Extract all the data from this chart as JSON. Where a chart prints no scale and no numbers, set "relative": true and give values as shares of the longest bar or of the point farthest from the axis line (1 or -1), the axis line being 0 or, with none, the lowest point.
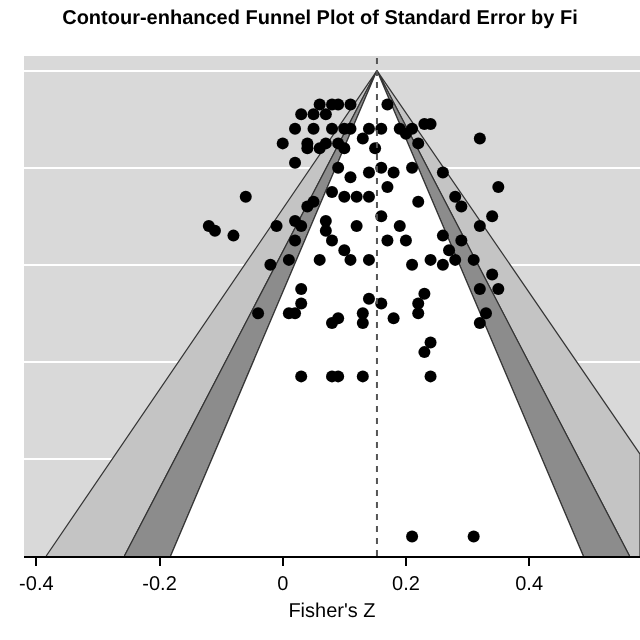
{
  "chart_data": {
    "type": "scatter",
    "title": "Contour-enhanced Funnel Plot of Standard Error by Fi",
    "xlabel": "Fisher's Z",
    "relative": true,
    "grid": "y",
    "xlim": [
      -0.42,
      0.58
    ],
    "xticks": [
      -0.4,
      -0.2,
      0,
      0.2,
      0.4
    ],
    "ref_lines": [
      {
        "axis": "x",
        "value": 0.153,
        "label": null,
        "color": "#555555",
        "line_style": "dotted"
      }
    ],
    "series": [
      {
        "type": "area",
        "color": "#c4c4c4",
        "x": [
          -0.384,
          0.153,
          -0.257
        ],
        "values": [
          0,
          1,
          0
        ]
      },
      {
        "type": "area",
        "color": "#c4c4c4",
        "x": [
          0.563,
          0.153,
          0.58,
          0.58
        ],
        "values": [
          0,
          1,
          0.21,
          0
        ]
      },
      {
        "type": "area",
        "color": "#8c8c8c",
        "x": [
          -0.257,
          0.153,
          -0.182
        ],
        "values": [
          0,
          1,
          0
        ]
      },
      {
        "type": "area",
        "color": "#8c8c8c",
        "x": [
          0.488,
          0.153,
          0.563
        ],
        "values": [
          0,
          1,
          0
        ]
      },
      {
        "type": "area",
        "color": "#ffffff",
        "x": [
          -0.182,
          0.153,
          0.488
        ],
        "values": [
          0,
          1,
          0
        ]
      },
      {
        "type": "scatter",
        "marker": "circle",
        "color": "#000000",
        "x": [
          0.17,
          0.06,
          0.08,
          0.09,
          0.11,
          0.03,
          0.05,
          0.07,
          0.32,
          0.02,
          0.05,
          0.08,
          0.1,
          0.11,
          0.14,
          0.16,
          0.19,
          0.21,
          0.23,
          0.24,
          0.0,
          0.04,
          0.07,
          0.09,
          0.13,
          0.2,
          0.22,
          0.04,
          0.06,
          0.1,
          0.15,
          0.02,
          -0.06,
          0.35,
          0.14,
          0.16,
          0.18,
          0.09,
          0.11,
          0.21,
          0.26,
          0.08,
          0.1,
          0.12,
          0.14,
          0.05,
          0.04,
          0.17,
          0.22,
          0.28,
          0.29,
          0.34,
          -0.12,
          -0.11,
          -0.08,
          -0.01,
          0.02,
          0.03,
          0.07,
          0.07,
          0.12,
          0.16,
          0.19,
          0.2,
          0.17,
          0.26,
          0.32,
          0.02,
          0.08,
          0.1,
          0.27,
          0.29,
          -0.02,
          0.01,
          0.06,
          0.11,
          0.14,
          0.21,
          0.24,
          0.26,
          0.28,
          0.31,
          0.34,
          0.35,
          0.03,
          0.03,
          -0.04,
          0.01,
          0.02,
          0.14,
          0.16,
          0.22,
          0.23,
          0.32,
          0.33,
          0.08,
          0.09,
          0.13,
          0.13,
          0.18,
          0.22,
          0.32,
          0.23,
          0.24,
          0.03,
          0.08,
          0.09,
          0.13,
          0.24,
          0.21,
          0.31
        ],
        "values": [
          0.93,
          0.93,
          0.93,
          0.93,
          0.93,
          0.91,
          0.91,
          0.91,
          0.86,
          0.88,
          0.88,
          0.88,
          0.88,
          0.88,
          0.88,
          0.88,
          0.88,
          0.88,
          0.89,
          0.89,
          0.85,
          0.85,
          0.85,
          0.85,
          0.86,
          0.87,
          0.85,
          0.84,
          0.84,
          0.84,
          0.84,
          0.81,
          0.74,
          0.76,
          0.79,
          0.8,
          0.79,
          0.8,
          0.78,
          0.8,
          0.79,
          0.75,
          0.74,
          0.74,
          0.74,
          0.73,
          0.72,
          0.76,
          0.73,
          0.74,
          0.72,
          0.7,
          0.68,
          0.67,
          0.66,
          0.68,
          0.69,
          0.68,
          0.69,
          0.67,
          0.68,
          0.7,
          0.68,
          0.65,
          0.65,
          0.66,
          0.68,
          0.65,
          0.65,
          0.63,
          0.63,
          0.65,
          0.6,
          0.61,
          0.61,
          0.61,
          0.61,
          0.6,
          0.61,
          0.6,
          0.61,
          0.61,
          0.58,
          0.55,
          0.55,
          0.52,
          0.5,
          0.5,
          0.5,
          0.53,
          0.52,
          0.52,
          0.54,
          0.55,
          0.5,
          0.48,
          0.49,
          0.5,
          0.48,
          0.49,
          0.5,
          0.48,
          0.42,
          0.44,
          0.37,
          0.37,
          0.37,
          0.37,
          0.37,
          0.04,
          0.04
        ]
      }
    ]
  }
}
